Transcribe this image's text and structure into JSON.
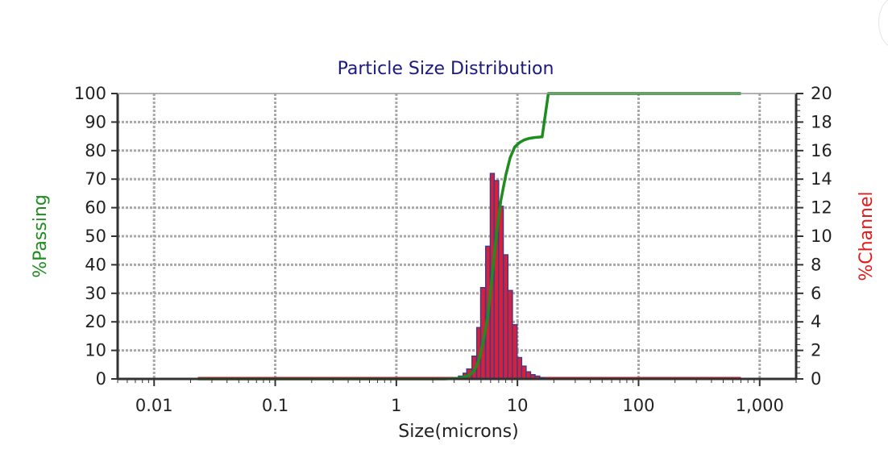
{
  "chart_data": {
    "type": "bar",
    "title": "Particle Size Distribution",
    "xlabel": "Size(microns)",
    "ylabel_left": "%Passing",
    "ylabel_right": "%Channel",
    "x_scale": "log",
    "xlim": [
      0.005,
      2000
    ],
    "ylim_left": [
      0,
      100
    ],
    "ylim_right": [
      0,
      20
    ],
    "x_tick_values": [
      0.01,
      0.1,
      1,
      10,
      100,
      1000
    ],
    "x_tick_labels": [
      "0.01",
      "0.1",
      "1",
      "10",
      "100",
      "1,000"
    ],
    "y_left_ticks": [
      0,
      10,
      20,
      30,
      40,
      50,
      60,
      70,
      80,
      90,
      100
    ],
    "y_right_ticks": [
      0,
      2,
      4,
      6,
      8,
      10,
      12,
      14,
      16,
      18,
      20
    ],
    "grid": true,
    "colors": {
      "passing_line": "#1e8c1e",
      "channel_bar_fill": "#d8203a",
      "channel_bar_edge": "#3c3c8c",
      "channel_baseline": "#e01b1b",
      "grid": "#a8a8a8",
      "title": "#1a1a80"
    },
    "series": [
      {
        "name": "%Channel",
        "kind": "bar",
        "axis": "right",
        "x": [
          3.4,
          3.7,
          4.0,
          4.4,
          4.8,
          5.2,
          5.7,
          6.2,
          6.7,
          7.3,
          8.0,
          8.7,
          9.5,
          10.4,
          11.3,
          12.3,
          13.4,
          14.6,
          16.0
        ],
        "values": [
          0.2,
          0.4,
          0.7,
          1.6,
          3.6,
          6.4,
          9.3,
          14.4,
          13.9,
          12.1,
          8.7,
          6.2,
          3.8,
          1.5,
          0.9,
          0.5,
          0.3,
          0.2,
          0.1
        ]
      },
      {
        "name": "%Passing",
        "kind": "line",
        "axis": "left",
        "x": [
          0.023,
          0.1,
          1,
          2.5,
          3.2,
          3.6,
          4.0,
          4.4,
          4.8,
          5.2,
          5.7,
          6.2,
          6.7,
          7.3,
          8.0,
          8.7,
          9.5,
          10.4,
          11.3,
          12.3,
          13.4,
          14.6,
          16.0,
          18.0,
          30,
          100,
          700
        ],
        "values": [
          0,
          0,
          0,
          0,
          0.2,
          0.6,
          1.3,
          2.9,
          6.5,
          12.9,
          22.2,
          36.6,
          50.5,
          62.6,
          71.3,
          77.5,
          81.3,
          82.8,
          83.7,
          84.2,
          84.5,
          84.7,
          84.8,
          100,
          100,
          100,
          100
        ]
      }
    ]
  }
}
